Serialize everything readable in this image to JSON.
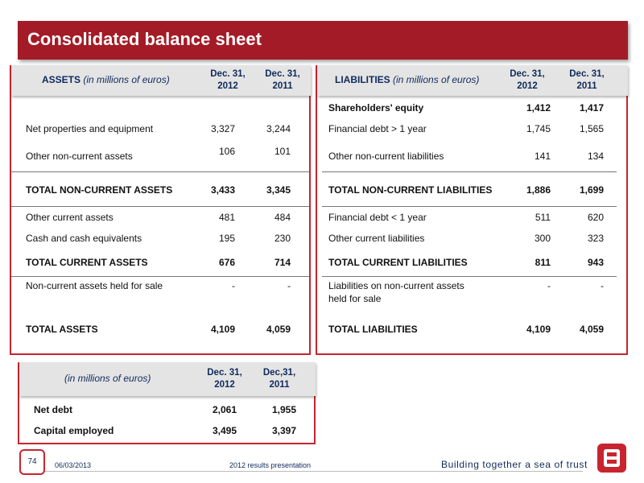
{
  "title": "Consolidated balance sheet",
  "assets": {
    "header": {
      "label": "ASSETS",
      "unit": "(in millions of euros)",
      "col1": "Dec. 31, 2012",
      "col2": "Dec. 31, 2011"
    },
    "rows": [
      {
        "name": "Net properties and equipment",
        "v1": "3,327",
        "v2": "3,244"
      },
      {
        "name": "Other non-current assets",
        "v1": "106",
        "v2": "101"
      },
      {
        "name": "TOTAL NON-CURRENT ASSETS",
        "v1": "3,433",
        "v2": "3,345"
      },
      {
        "name": "Other current assets",
        "v1": "481",
        "v2": "484"
      },
      {
        "name": "Cash and cash equivalents",
        "v1": "195",
        "v2": "230"
      },
      {
        "name": "TOTAL CURRENT ASSETS",
        "v1": "676",
        "v2": "714"
      },
      {
        "name": "Non-current assets held for sale",
        "v1": "-",
        "v2": "-"
      },
      {
        "name": "TOTAL ASSETS",
        "v1": "4,109",
        "v2": "4,059"
      }
    ]
  },
  "liabilities": {
    "header": {
      "label": "LIABILITIES",
      "unit": "(in millions of euros)",
      "col1": "Dec. 31, 2012",
      "col2": "Dec. 31, 2011"
    },
    "rows": [
      {
        "name": "Shareholders' equity",
        "v1": "1,412",
        "v2": "1,417"
      },
      {
        "name": "Financial debt > 1 year",
        "v1": "1,745",
        "v2": "1,565"
      },
      {
        "name": "Other non-current liabilities",
        "v1": "141",
        "v2": "134"
      },
      {
        "name": "TOTAL NON-CURRENT LIABILITIES",
        "v1": "1,886",
        "v2": "1,699"
      },
      {
        "name": "Financial debt < 1 year",
        "v1": "511",
        "v2": "620"
      },
      {
        "name": "Other current liabilities",
        "v1": "300",
        "v2": "323"
      },
      {
        "name": "TOTAL CURRENT LIABILITIES",
        "v1": "811",
        "v2": "943"
      },
      {
        "name": "Liabilities on non-current assets",
        "name2": "held for sale",
        "v1": "-",
        "v2": "-"
      },
      {
        "name": "TOTAL LIABILITIES",
        "v1": "4,109",
        "v2": "4,059"
      }
    ]
  },
  "summary": {
    "header": {
      "unit": "(in millions of euros)",
      "col1": "Dec. 31, 2012",
      "col2": "Dec,31, 2011"
    },
    "rows": [
      {
        "name": "Net debt",
        "v1": "2,061",
        "v2": "1,955"
      },
      {
        "name": "Capital employed",
        "v1": "3,495",
        "v2": "3,397"
      }
    ]
  },
  "footer": {
    "page": "74",
    "date": "06/03/2013",
    "presentation": "2012 results presentation",
    "tagline": "Building together a sea of trust",
    "logo_letter": "B"
  },
  "colors": {
    "brand_red": "#a31b26",
    "panel_border": "#c8242f",
    "header_text": "#0e2a5c",
    "header_bg": "#e4e4e4"
  }
}
